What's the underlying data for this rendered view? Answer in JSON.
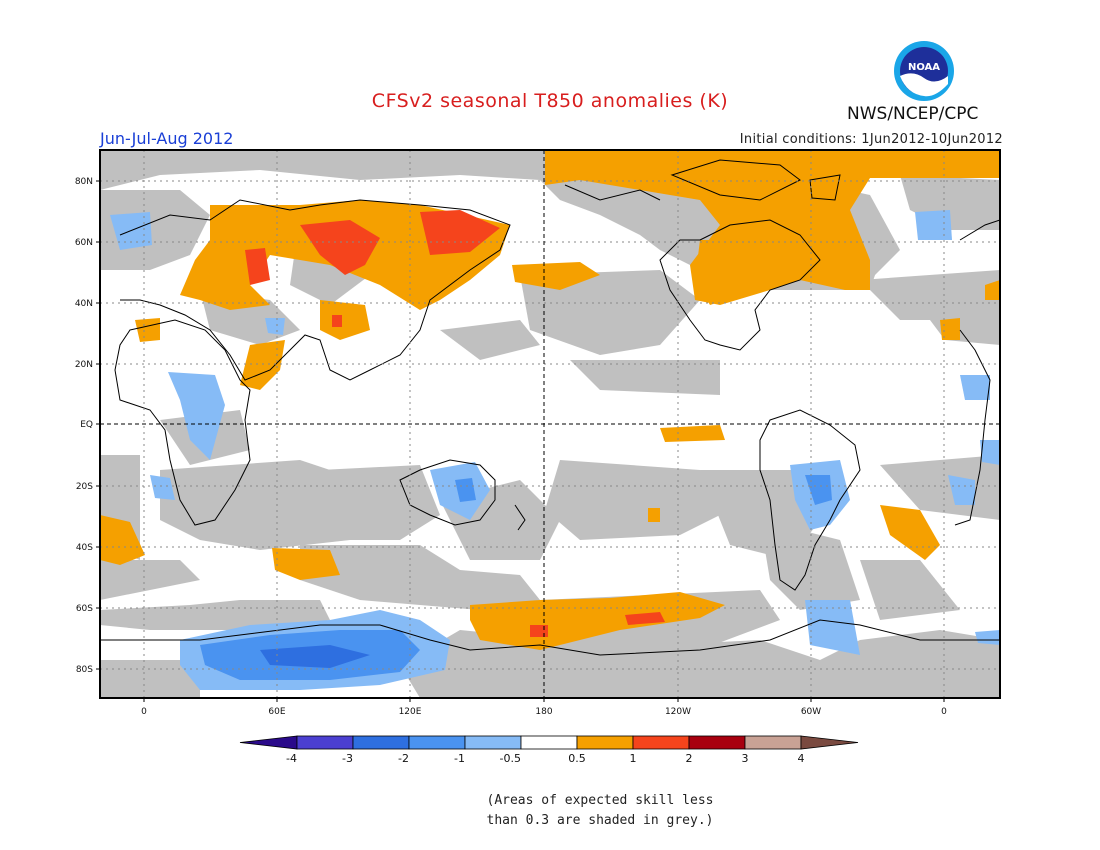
{
  "title": "CFSv2 seasonal T850 anomalies (K)",
  "season": "Jun-Jul-Aug 2012",
  "initial_conditions": "Initial conditions: 1Jun2012-10Jun2012",
  "agency": "NWS/NCEP/CPC",
  "logo_text": "NOAA",
  "lat_labels": [
    "80N",
    "60N",
    "40N",
    "20N",
    "EQ",
    "20S",
    "40S",
    "60S",
    "80S"
  ],
  "lon_labels": [
    "0",
    "60E",
    "120E",
    "180",
    "120W",
    "60W",
    "0"
  ],
  "colorbar": {
    "labels": [
      "-4",
      "-3",
      "-2",
      "-1",
      "-0.5",
      "0.5",
      "1",
      "2",
      "3",
      "4"
    ],
    "colors": [
      "#2a0a8a",
      "#4b3fd1",
      "#2e6fe0",
      "#4a93f0",
      "#86bbf6",
      "#ffffff",
      "#f5a000",
      "#f5441c",
      "#a8000f",
      "#c9a295",
      "#7a4a40"
    ]
  },
  "note_line1": "(Areas of expected skill less",
  "note_line2": "than 0.3 are shaded in grey.)",
  "colors": {
    "skill_grey": "#c0c0c0",
    "title_red": "#d81e1e",
    "season_blue": "#1a3fd6"
  }
}
